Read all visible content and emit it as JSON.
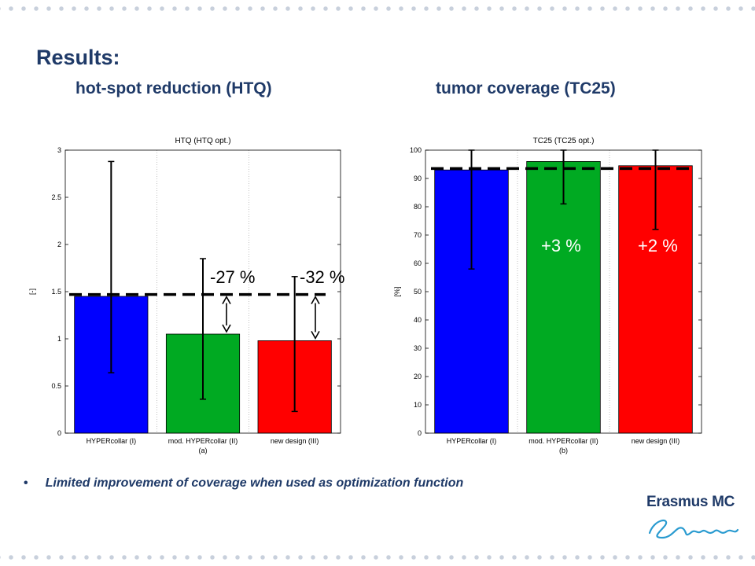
{
  "slide": {
    "title": "Results:",
    "subtitle_left": "hot-spot reduction (HTQ)",
    "subtitle_right": "tumor coverage (TC25)",
    "bullet": "Limited improvement of coverage when used as optimization function",
    "logo_text": "Erasmus MC"
  },
  "chart_data": [
    {
      "type": "bar",
      "title": "HTQ (HTQ opt.)",
      "ylabel": "[-]",
      "xlabel": "(a)",
      "categories": [
        "HYPERcollar (I)",
        "mod. HYPERcollar (II)",
        "new design (III)"
      ],
      "values": [
        1.45,
        1.05,
        0.98
      ],
      "error_low": [
        0.64,
        0.36,
        0.23
      ],
      "error_high": [
        2.88,
        1.85,
        1.66
      ],
      "colors": [
        "#0000ff",
        "#00aa22",
        "#ff0000"
      ],
      "ylim": [
        0,
        3
      ],
      "yticks": [
        "0",
        "0.5",
        "1",
        "1.5",
        "2",
        "2.5",
        "3"
      ],
      "reference_line": 1.47,
      "annotations": [
        "-27 %",
        "-32 %"
      ],
      "grid": "vertical dotted"
    },
    {
      "type": "bar",
      "title": "TC25 (TC25 opt.)",
      "ylabel": "[%]",
      "xlabel": "(b)",
      "categories": [
        "HYPERcollar (I)",
        "mod. HYPERcollar (II)",
        "new design (III)"
      ],
      "values": [
        93,
        96,
        94.5
      ],
      "error_low": [
        58,
        81,
        72
      ],
      "error_high": [
        100,
        100,
        100
      ],
      "colors": [
        "#0000ff",
        "#00aa22",
        "#ff0000"
      ],
      "ylim": [
        0,
        100
      ],
      "yticks": [
        "0",
        "10",
        "20",
        "30",
        "40",
        "50",
        "60",
        "70",
        "80",
        "90",
        "100"
      ],
      "reference_line": 93.5,
      "annotations": [
        "+3 %",
        "+2 %"
      ],
      "grid": "vertical dotted"
    }
  ]
}
